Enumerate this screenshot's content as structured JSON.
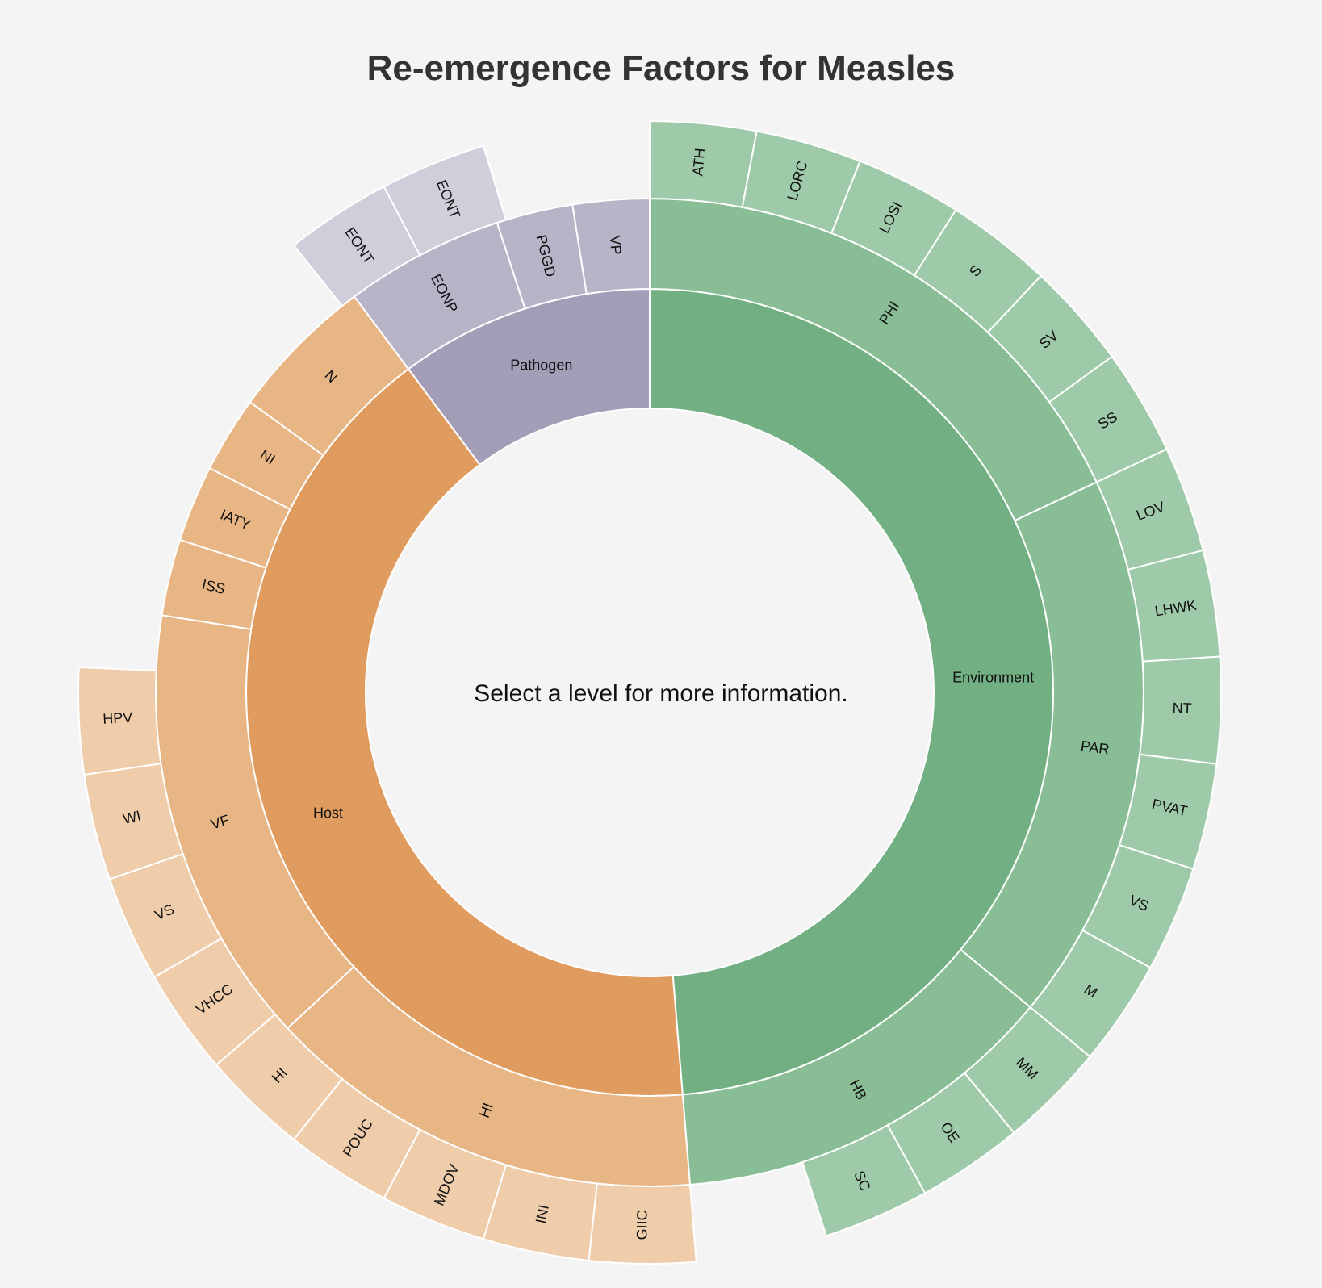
{
  "title": "Re-emergence Factors for Measles",
  "center_prompt": "Select a level for more information.",
  "colors": {
    "Environment": [
      "#72b083",
      "#89bd95",
      "#9fcaa9"
    ],
    "Host": [
      "#e09b5e",
      "#e8b585",
      "#efcdab"
    ],
    "Pathogen": [
      "#a39db7",
      "#b8b4c8",
      "#d0ceda"
    ]
  },
  "chart_data": {
    "type": "sunburst",
    "title": "Re-emergence Factors for Measles",
    "nodes": [
      {
        "name": "Environment",
        "depth": 1,
        "start": 0.0,
        "end": 0.487
      },
      {
        "name": "Host",
        "depth": 1,
        "start": 0.487,
        "end": 0.898
      },
      {
        "name": "Pathogen",
        "depth": 1,
        "start": 0.898,
        "end": 1.0
      },
      {
        "name": "PHI",
        "depth": 2,
        "group": "Environment",
        "start": 0.0,
        "end": 0.18
      },
      {
        "name": "PAR",
        "depth": 2,
        "group": "Environment",
        "start": 0.18,
        "end": 0.36
      },
      {
        "name": "HB",
        "depth": 2,
        "group": "Environment",
        "start": 0.36,
        "end": 0.487
      },
      {
        "name": "HI",
        "depth": 2,
        "group": "Host",
        "start": 0.487,
        "end": 0.631
      },
      {
        "name": "VF",
        "depth": 2,
        "group": "Host",
        "start": 0.631,
        "end": 0.775
      },
      {
        "name": "ISS",
        "depth": 2,
        "group": "Host",
        "start": 0.775,
        "end": 0.8
      },
      {
        "name": "IATY",
        "depth": 2,
        "group": "Host",
        "start": 0.8,
        "end": 0.825
      },
      {
        "name": "NI",
        "depth": 2,
        "group": "Host",
        "start": 0.825,
        "end": 0.85
      },
      {
        "name": "N",
        "depth": 2,
        "group": "Host",
        "start": 0.85,
        "end": 0.898
      },
      {
        "name": "EONP",
        "depth": 2,
        "group": "Pathogen",
        "start": 0.898,
        "end": 0.95
      },
      {
        "name": "PGGD",
        "depth": 2,
        "group": "Pathogen",
        "start": 0.95,
        "end": 0.975
      },
      {
        "name": "VP",
        "depth": 2,
        "group": "Pathogen",
        "start": 0.975,
        "end": 1.0
      },
      {
        "name": "ATH",
        "depth": 3,
        "group": "Environment",
        "start": 0.0,
        "end": 0.03
      },
      {
        "name": "LORC",
        "depth": 3,
        "group": "Environment",
        "start": 0.03,
        "end": 0.06
      },
      {
        "name": "LOSI",
        "depth": 3,
        "group": "Environment",
        "start": 0.06,
        "end": 0.09
      },
      {
        "name": "S",
        "depth": 3,
        "group": "Environment",
        "start": 0.09,
        "end": 0.12
      },
      {
        "name": "SV",
        "depth": 3,
        "group": "Environment",
        "start": 0.12,
        "end": 0.15
      },
      {
        "name": "SS",
        "depth": 3,
        "group": "Environment",
        "start": 0.15,
        "end": 0.18
      },
      {
        "name": "LOV",
        "depth": 3,
        "group": "Environment",
        "start": 0.18,
        "end": 0.21
      },
      {
        "name": "LHWK",
        "depth": 3,
        "group": "Environment",
        "start": 0.21,
        "end": 0.24
      },
      {
        "name": "NT",
        "depth": 3,
        "group": "Environment",
        "start": 0.24,
        "end": 0.27
      },
      {
        "name": "PVAT",
        "depth": 3,
        "group": "Environment",
        "start": 0.27,
        "end": 0.3
      },
      {
        "name": "VS",
        "depth": 3,
        "group": "Environment",
        "start": 0.3,
        "end": 0.33
      },
      {
        "name": "M",
        "depth": 3,
        "group": "Environment",
        "start": 0.33,
        "end": 0.36
      },
      {
        "name": "MM",
        "depth": 3,
        "group": "Environment",
        "start": 0.36,
        "end": 0.39
      },
      {
        "name": "OE",
        "depth": 3,
        "group": "Environment",
        "start": 0.39,
        "end": 0.42
      },
      {
        "name": "SC",
        "depth": 3,
        "group": "Environment",
        "start": 0.42,
        "end": 0.45
      },
      {
        "name": "GIIC",
        "depth": 3,
        "group": "Host",
        "start": 0.487,
        "end": 0.517
      },
      {
        "name": "INI",
        "depth": 3,
        "group": "Host",
        "start": 0.517,
        "end": 0.547
      },
      {
        "name": "MDOV",
        "depth": 3,
        "group": "Host",
        "start": 0.547,
        "end": 0.577
      },
      {
        "name": "POUC",
        "depth": 3,
        "group": "Host",
        "start": 0.577,
        "end": 0.607
      },
      {
        "name": "HI",
        "depth": 3,
        "group": "Host",
        "start": 0.607,
        "end": 0.637
      },
      {
        "name": "VHCC",
        "depth": 3,
        "group": "Host",
        "start": 0.637,
        "end": 0.667
      },
      {
        "name": "VS",
        "depth": 3,
        "group": "Host",
        "start": 0.667,
        "end": 0.697
      },
      {
        "name": "WI",
        "depth": 3,
        "group": "Host",
        "start": 0.697,
        "end": 0.727
      },
      {
        "name": "HPV",
        "depth": 3,
        "group": "Host",
        "start": 0.727,
        "end": 0.757
      },
      {
        "name": "EONT",
        "depth": 3,
        "group": "Pathogen",
        "start": 0.893,
        "end": 0.923
      },
      {
        "name": "EONT",
        "depth": 3,
        "group": "Pathogen",
        "start": 0.923,
        "end": 0.953
      }
    ]
  }
}
